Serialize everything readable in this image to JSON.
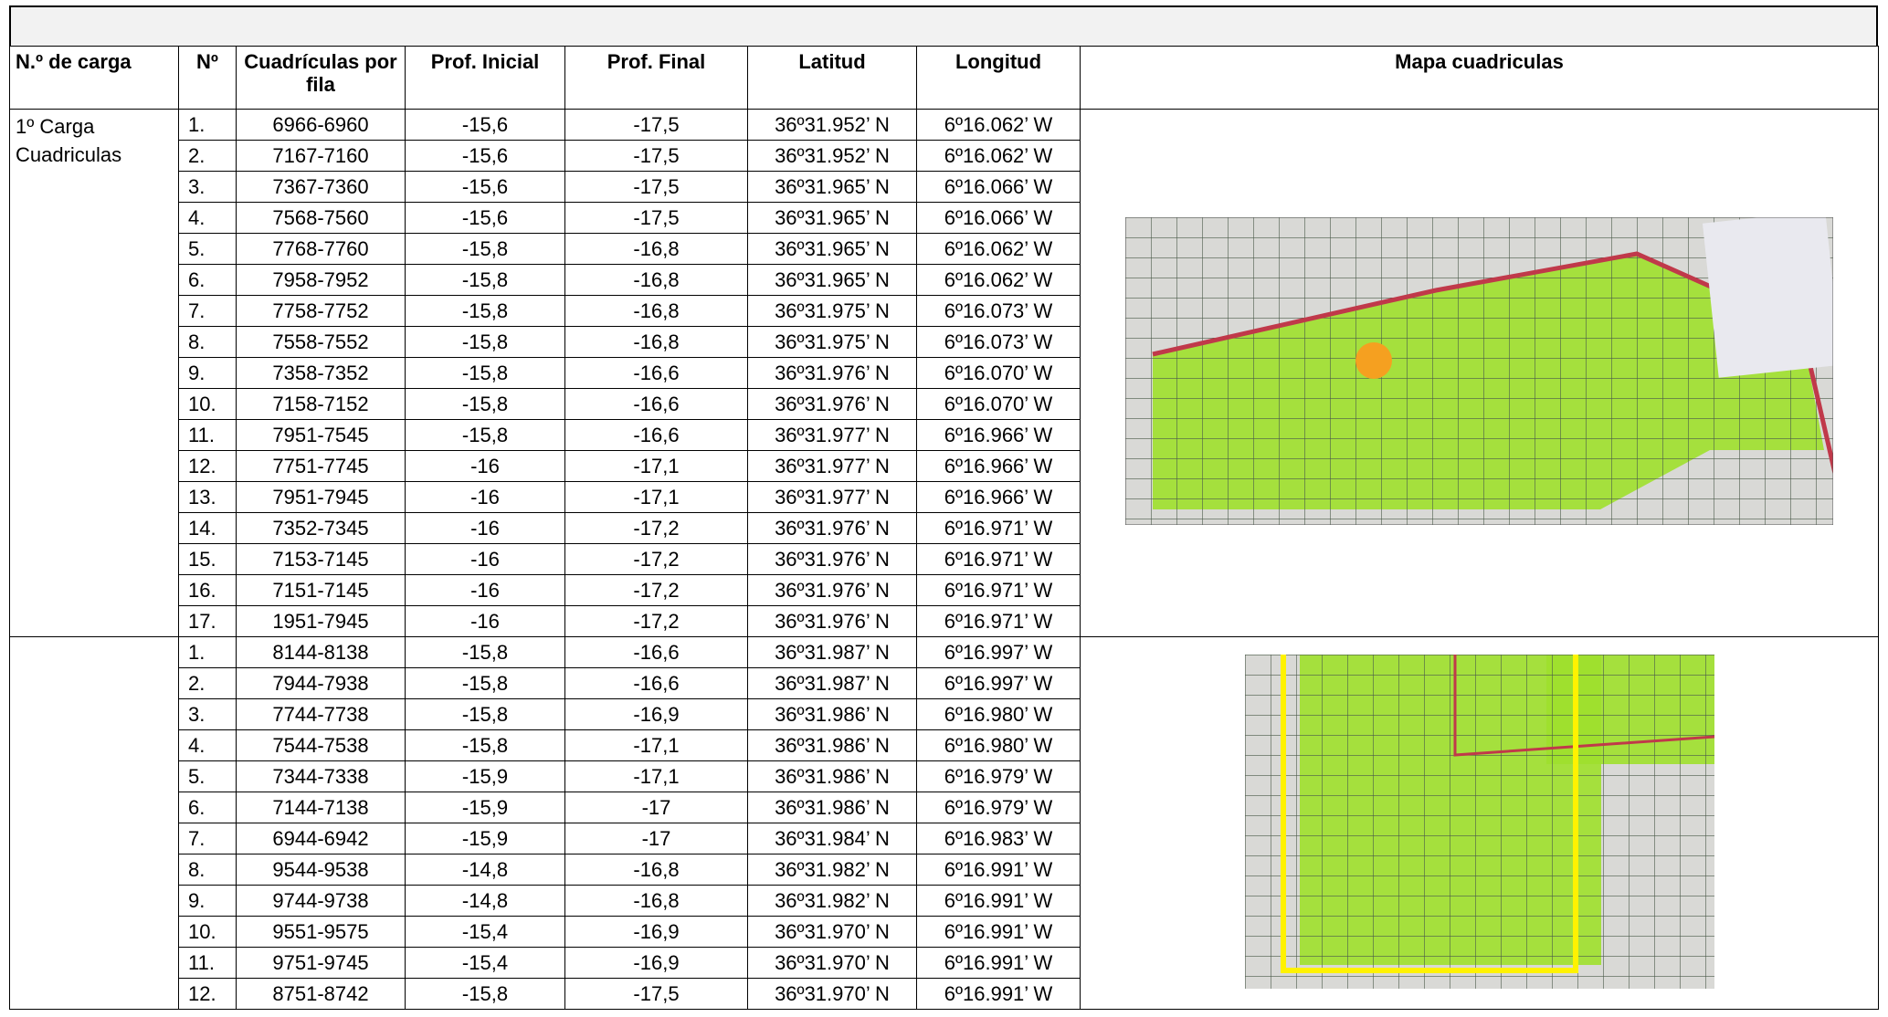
{
  "table": {
    "headers": [
      "N.º de carga",
      "Nº",
      "Cuadrículas por fila",
      "Prof. Inicial",
      "Prof. Final",
      "Latitud",
      "Longitud",
      "Mapa cuadriculas"
    ],
    "groups": [
      {
        "label": "1º Carga Cuadriculas",
        "rows": [
          [
            "1.",
            "6966-6960",
            "-15,6",
            "-17,5",
            "36º31.952’ N",
            "6º16.062’ W"
          ],
          [
            "2.",
            "7167-7160",
            "-15,6",
            "-17,5",
            "36º31.952’ N",
            "6º16.062’ W"
          ],
          [
            "3.",
            "7367-7360",
            "-15,6",
            "-17,5",
            "36º31.965’ N",
            "6º16.066’ W"
          ],
          [
            "4.",
            "7568-7560",
            "-15,6",
            "-17,5",
            "36º31.965’ N",
            "6º16.066’ W"
          ],
          [
            "5.",
            "7768-7760",
            "-15,8",
            "-16,8",
            "36º31.965’ N",
            "6º16.062’ W"
          ],
          [
            "6.",
            "7958-7952",
            "-15,8",
            "-16,8",
            "36º31.965’ N",
            "6º16.062’ W"
          ],
          [
            "7.",
            "7758-7752",
            "-15,8",
            "-16,8",
            "36º31.975’ N",
            "6º16.073’ W"
          ],
          [
            "8.",
            "7558-7552",
            "-15,8",
            "-16,8",
            "36º31.975’ N",
            "6º16.073’ W"
          ],
          [
            "9.",
            "7358-7352",
            "-15,8",
            "-16,6",
            "36º31.976’ N",
            "6º16.070’ W"
          ],
          [
            "10.",
            "7158-7152",
            "-15,8",
            "-16,6",
            "36º31.976’ N",
            "6º16.070’ W"
          ],
          [
            "11.",
            "7951-7545",
            "-15,8",
            "-16,6",
            "36º31.977’ N",
            "6º16.966’ W"
          ],
          [
            "12.",
            "7751-7745",
            "-16",
            "-17,1",
            "36º31.977’ N",
            "6º16.966’ W"
          ],
          [
            "13.",
            "7951-7945",
            "-16",
            "-17,1",
            "36º31.977’ N",
            "6º16.966’ W"
          ],
          [
            "14.",
            "7352-7345",
            "-16",
            "-17,2",
            "36º31.976’ N",
            "6º16.971’ W"
          ],
          [
            "15.",
            "7153-7145",
            "-16",
            "-17,2",
            "36º31.976’ N",
            "6º16.971’ W"
          ],
          [
            "16.",
            "7151-7145",
            "-16",
            "-17,2",
            "36º31.976’ N",
            "6º16.971’ W"
          ],
          [
            "17.",
            "1951-7945",
            "-16",
            "-17,2",
            "36º31.976’ N",
            "6º16.971’ W"
          ]
        ]
      },
      {
        "rows": [
          [
            "1.",
            "8144-8138",
            "-15,8",
            "-16,6",
            "36º31.987’ N",
            "6º16.997’ W"
          ],
          [
            "2.",
            "7944-7938",
            "-15,8",
            "-16,6",
            "36º31.987’ N",
            "6º16.997’ W"
          ],
          [
            "3.",
            "7744-7738",
            "-15,8",
            "-16,9",
            "36º31.986’ N",
            "6º16.980’ W"
          ],
          [
            "4.",
            "7544-7538",
            "-15,8",
            "-17,1",
            "36º31.986’ N",
            "6º16.980’ W"
          ],
          [
            "5.",
            "7344-7338",
            "-15,9",
            "-17,1",
            "36º31.986’ N",
            "6º16.979’ W"
          ],
          [
            "6.",
            "7144-7138",
            "-15,9",
            "-17",
            "36º31.986’ N",
            "6º16.979’ W"
          ],
          [
            "7.",
            "6944-6942",
            "-15,9",
            "-17",
            "36º31.984’ N",
            "6º16.983’ W"
          ],
          [
            "8.",
            "9544-9538",
            "-14,8",
            "-16,8",
            "36º31.982’ N",
            "6º16.991’ W"
          ],
          [
            "9.",
            "9744-9738",
            "-14,8",
            "-16,8",
            "36º31.982’ N",
            "6º16.991’ W"
          ],
          [
            "10.",
            "9551-9575",
            "-15,4",
            "-16,9",
            "36º31.970’ N",
            "6º16.991’ W"
          ],
          [
            "11.",
            "9751-9745",
            "-15,4",
            "-16,9",
            "36º31.970’ N",
            "6º16.991’ W"
          ],
          [
            "12.",
            "8751-8742",
            "-15,8",
            "-17,5",
            "36º31.970’ N",
            "6º16.991’ W"
          ]
        ]
      }
    ]
  }
}
